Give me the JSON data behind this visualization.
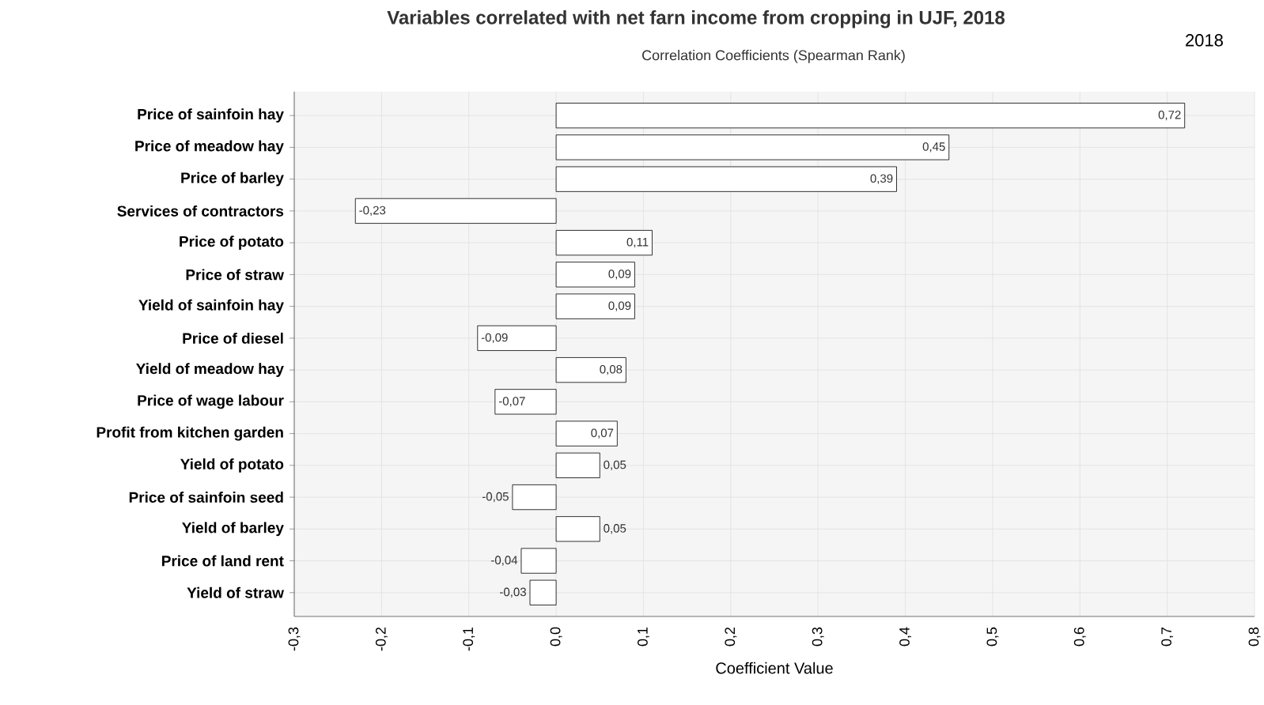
{
  "chart_data": {
    "type": "bar",
    "orientation": "horizontal",
    "title": "Variables correlated with net farn income from cropping in UJF, 2018",
    "subtitle": "Correlation Coefficients (Spearman Rank)",
    "xlabel": "Coefficient  Value",
    "annotations": [
      "2018"
    ],
    "categories": [
      "Price of sainfoin hay",
      "Price of meadow hay",
      "Price of barley",
      "Services of contractors",
      "Price of potato",
      "Price of straw",
      "Yield of sainfoin hay",
      "Price of diesel",
      "Yield of meadow hay",
      "Price of wage labour",
      "Profit from kitchen garden",
      "Yield of potato",
      "Price of sainfoin seed",
      "Yield of barley",
      "Price of land rent",
      "Yield of straw"
    ],
    "values": [
      0.72,
      0.45,
      0.39,
      -0.23,
      0.11,
      0.09,
      0.09,
      -0.09,
      0.08,
      -0.07,
      0.07,
      0.05,
      -0.05,
      0.05,
      -0.04,
      -0.03
    ],
    "value_labels": [
      "0,72",
      "0,45",
      "0,39",
      "-0,23",
      "0,11",
      "0,09",
      "0,09",
      "-0,09",
      "0,08",
      "-0,07",
      "0,07",
      "0,05",
      "-0,05",
      "0,05",
      "-0,04",
      "-0,03"
    ],
    "color": "#ffffff",
    "xlim": [
      -0.3,
      0.8
    ],
    "xticks": [
      {
        "value": -0.3,
        "label": "-0,3"
      },
      {
        "value": -0.2,
        "label": "-0,2"
      },
      {
        "value": -0.1,
        "label": "-0,1"
      },
      {
        "value": 0,
        "label": "0,0"
      },
      {
        "value": 0.1,
        "label": "0,1"
      },
      {
        "value": 0.2,
        "label": "0,2"
      },
      {
        "value": 0.3,
        "label": "0,3"
      },
      {
        "value": 0.4,
        "label": "0,4"
      },
      {
        "value": 0.5,
        "label": "0,5"
      },
      {
        "value": 0.6,
        "label": "0,6"
      },
      {
        "value": 0.7,
        "label": "0,7"
      },
      {
        "value": 0.8,
        "label": "0,8"
      }
    ],
    "grid": true
  }
}
